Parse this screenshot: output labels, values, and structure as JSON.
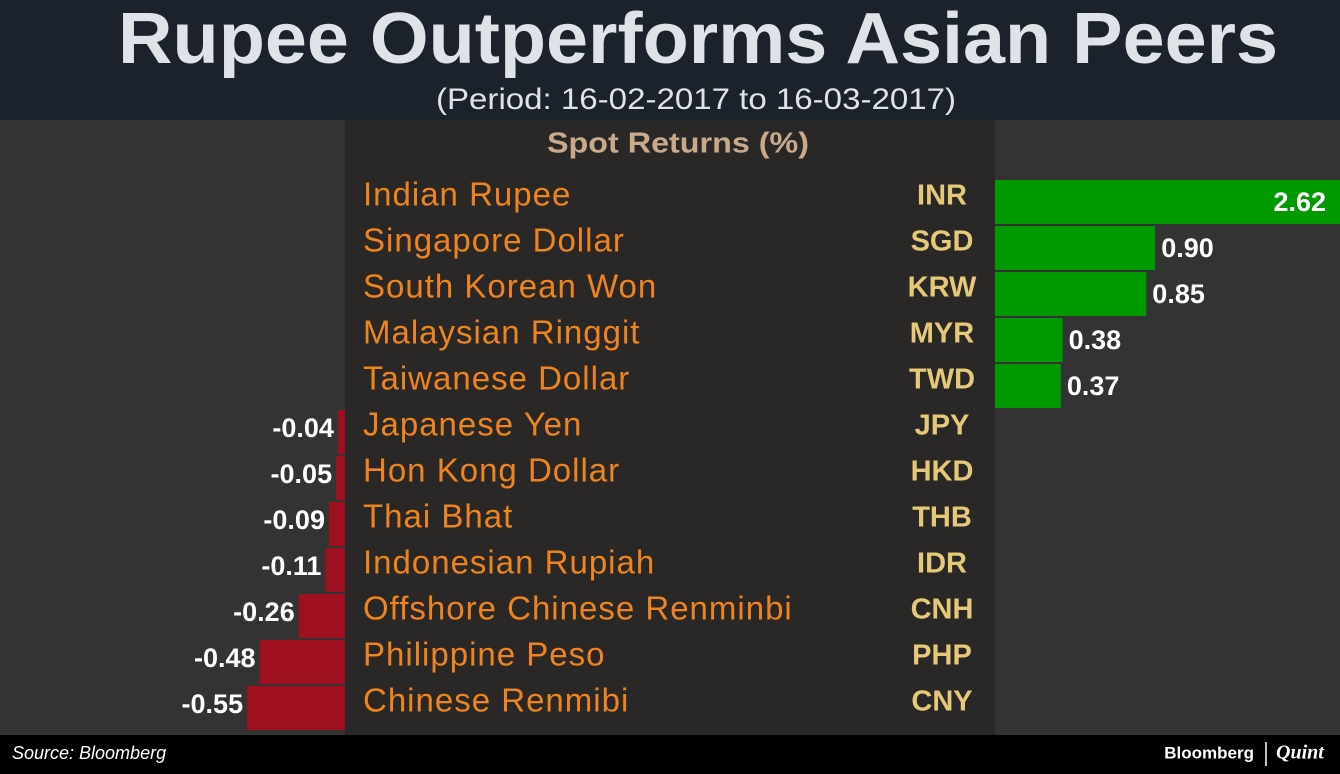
{
  "chart_data": {
    "type": "bar",
    "title": "Rupee Outperforms Asian Peers",
    "subtitle": "(Period: 16-02-2017 to 16-03-2017)",
    "column_header": "Spot Returns (%)",
    "categories": [
      "Indian Rupee",
      "Singapore Dollar",
      "South Korean Won",
      "Malaysian Ringgit",
      "Taiwanese Dollar",
      "Japanese Yen",
      "Hon Kong Dollar",
      "Thai Bhat",
      "Indonesian Rupiah",
      "Offshore Chinese Renminbi",
      "Philippine Peso",
      "Chinese Renmibi"
    ],
    "codes": [
      "INR",
      "SGD",
      "KRW",
      "MYR",
      "TWD",
      "JPY",
      "HKD",
      "THB",
      "IDR",
      "CNH",
      "PHP",
      "CNY"
    ],
    "values": [
      2.62,
      0.9,
      0.85,
      0.38,
      0.37,
      -0.04,
      -0.05,
      -0.09,
      -0.11,
      -0.26,
      -0.48,
      -0.55
    ],
    "value_labels": [
      "2.62",
      "0.90",
      "0.85",
      "0.38",
      "0.37",
      "-0.04",
      "-0.05",
      "-0.09",
      "-0.11",
      "-0.26",
      "-0.48",
      "-0.55"
    ],
    "positive_color": "#009a00",
    "negative_color": "#9e1020",
    "source": "Source: Bloomberg",
    "brand": "Bloomberg",
    "brand_partner": "Quint"
  }
}
